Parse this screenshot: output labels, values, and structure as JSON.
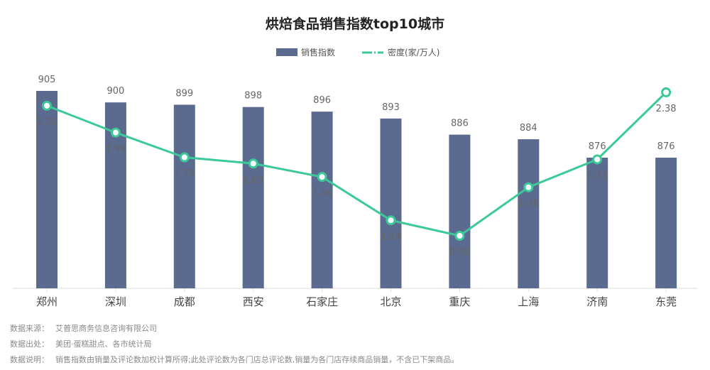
{
  "title": "烘焙食品销售指数top10城市",
  "legend": {
    "bar_label": "销售指数",
    "line_label": "密度(家/万人)"
  },
  "colors": {
    "bar": "#5b6a8f",
    "line": "#3cc99a",
    "axis": "#dddddd"
  },
  "chart_data": {
    "type": "bar",
    "categories": [
      "郑州",
      "深圳",
      "成都",
      "西安",
      "石家庄",
      "北京",
      "重庆",
      "上海",
      "济南",
      "东莞"
    ],
    "series": [
      {
        "name": "销售指数",
        "type": "bar",
        "values": [
          905,
          900,
          899,
          898,
          896,
          893,
          886,
          884,
          876,
          876
        ]
      },
      {
        "name": "密度(家/万人)",
        "type": "line",
        "values": [
          2.25,
          1.99,
          1.75,
          1.69,
          1.56,
          1.14,
          0.99,
          1.46,
          1.73,
          2.38
        ]
      }
    ]
  },
  "notes": [
    {
      "key": "数据来源：",
      "value": "艾普思商务信息咨询有限公司"
    },
    {
      "key": "数据出处：",
      "value": "美团·蛋糕甜点、各市统计局"
    },
    {
      "key": "数据说明：",
      "value": "销售指数由销量及评论数加权计算所得;此处评论数为各门店总评论数,销量为各门店存续商品销量，不含已下架商品。"
    }
  ]
}
